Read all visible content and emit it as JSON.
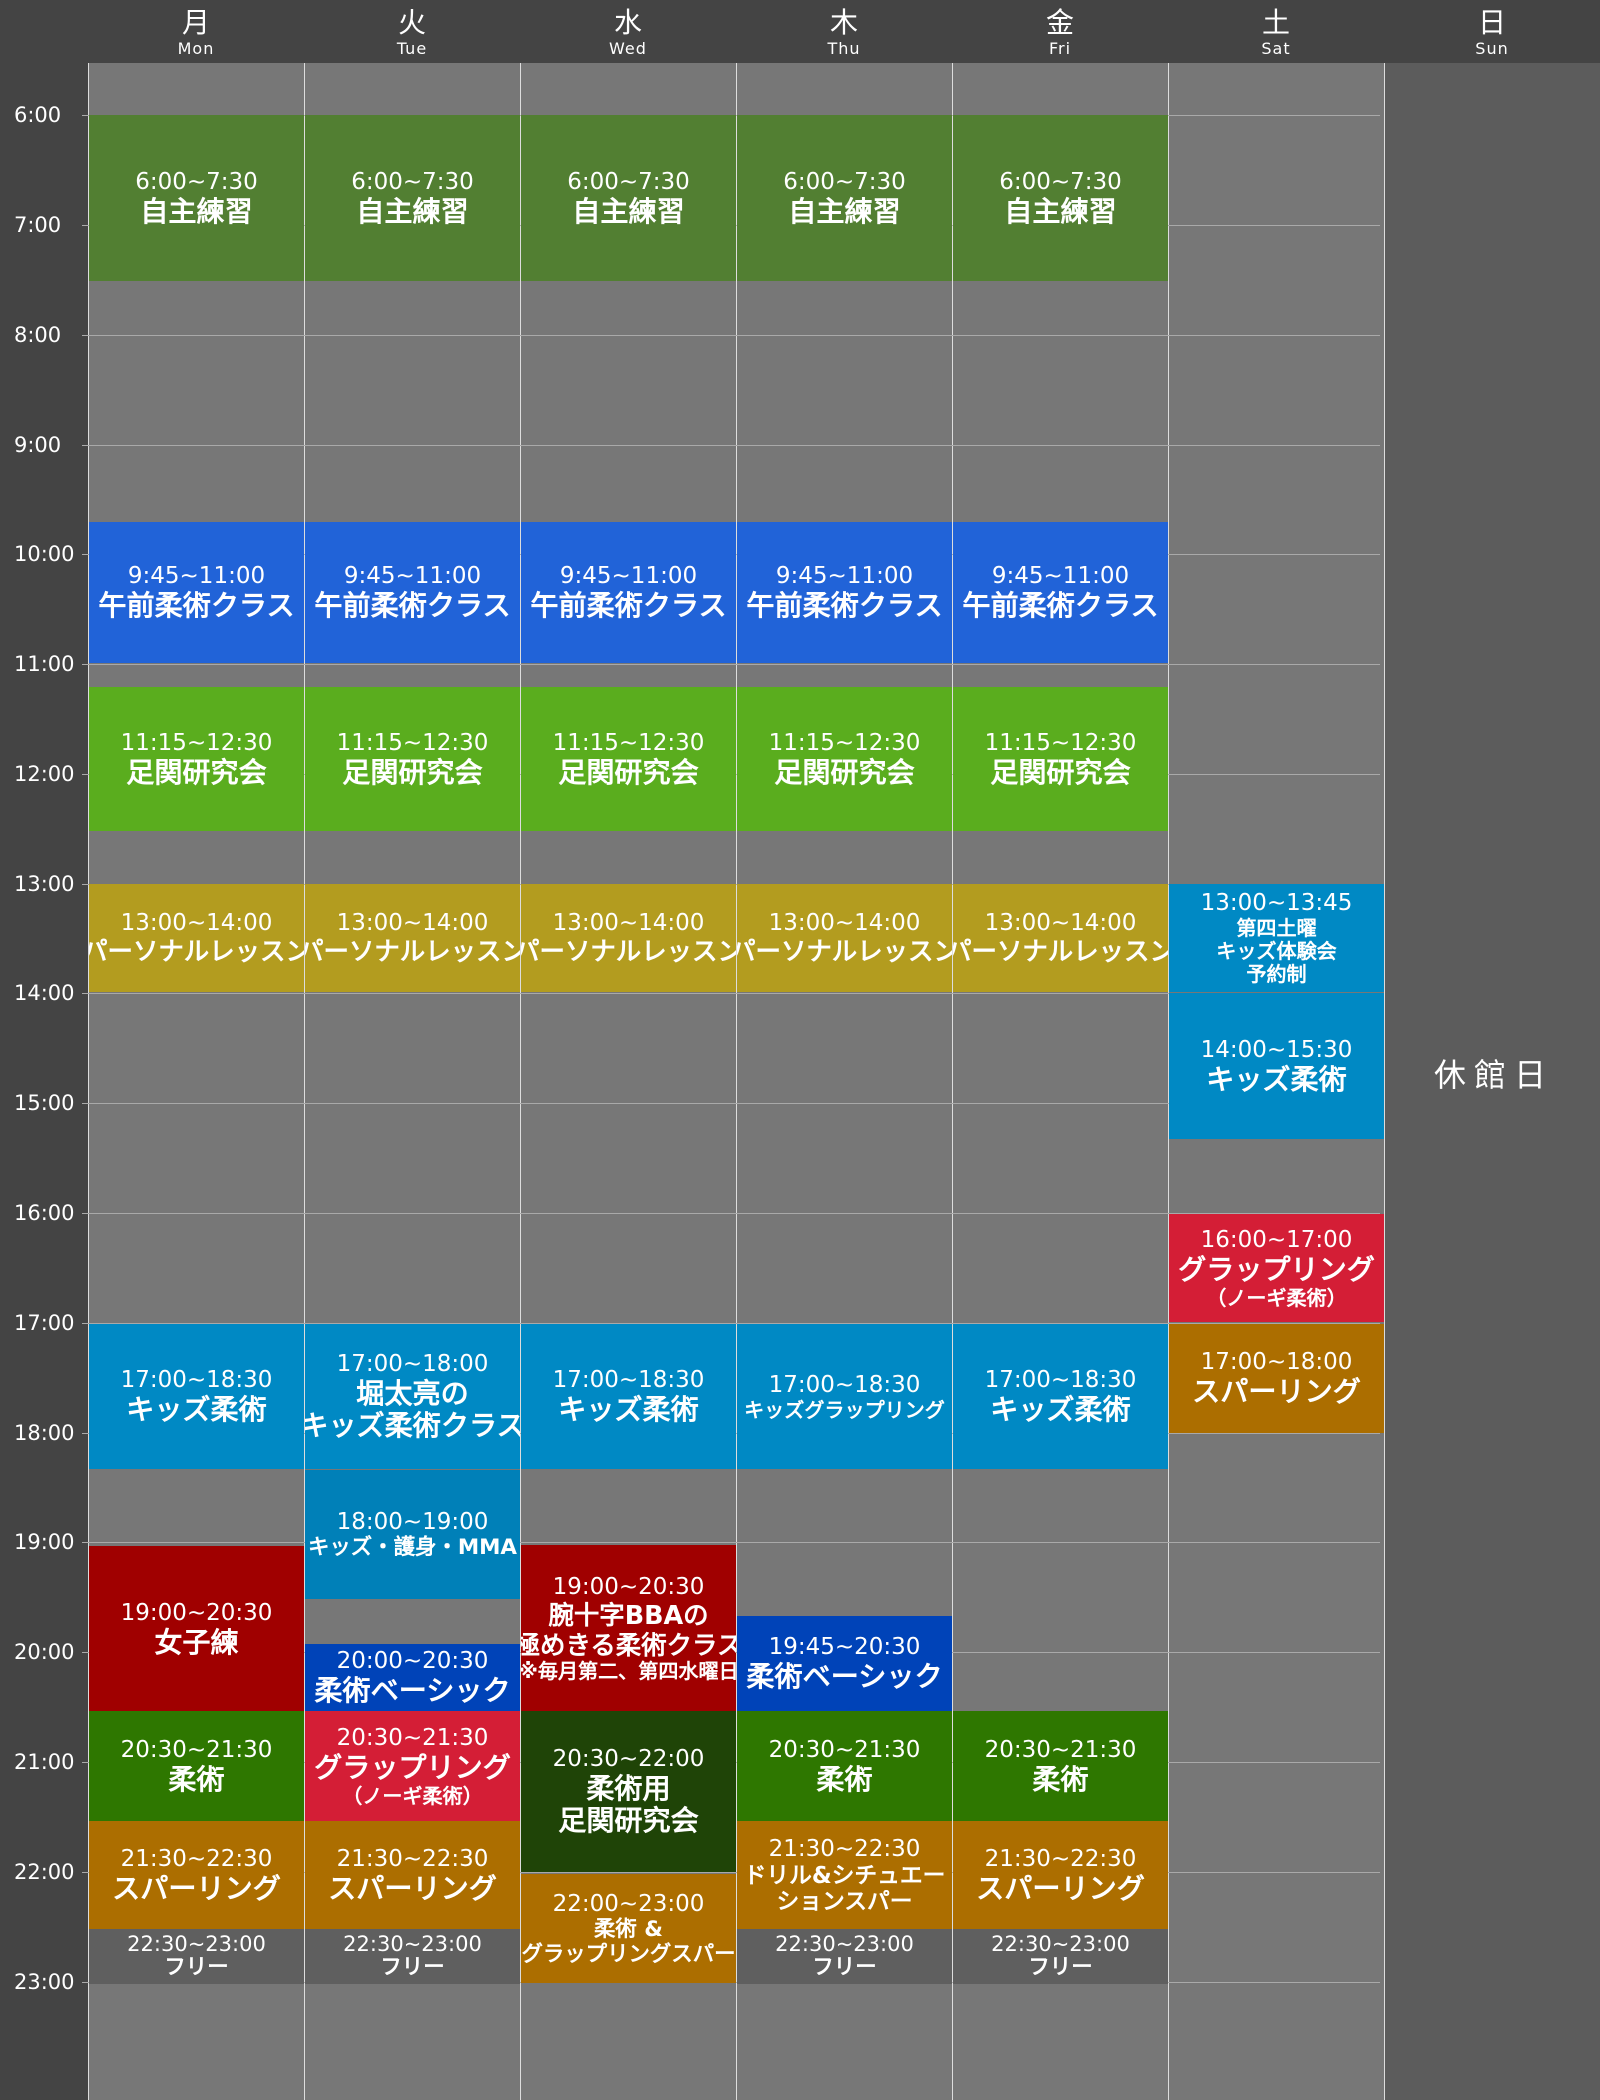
{
  "days": [
    {
      "jp": "月",
      "en": "Mon"
    },
    {
      "jp": "火",
      "en": "Tue"
    },
    {
      "jp": "水",
      "en": "Wed"
    },
    {
      "jp": "木",
      "en": "Thu"
    },
    {
      "jp": "金",
      "en": "Fri"
    },
    {
      "jp": "土",
      "en": "Sat"
    },
    {
      "jp": "日",
      "en": "Sun"
    }
  ],
  "hours": [
    "6:00",
    "7:00",
    "8:00",
    "9:00",
    "10:00",
    "11:00",
    "12:00",
    "13:00",
    "14:00",
    "15:00",
    "16:00",
    "17:00",
    "18:00",
    "19:00",
    "20:00",
    "21:00",
    "22:00",
    "23:00"
  ],
  "closed_label": "休館日",
  "colors": {
    "self": "#527f32",
    "am": "#2163d8",
    "leg": "#5aad1e",
    "personal": "#b39c1f",
    "kids": "#0089c4",
    "kids2": "#0080b8",
    "women": "#a00000",
    "basic": "#0043b8",
    "jiu": "#2e7700",
    "grapple": "#d41e36",
    "spar": "#ac6e00",
    "free": "#5f5f5f",
    "legjiu": "#1f4407"
  },
  "events": [
    {
      "day": 0,
      "time": "6:00~7:30",
      "lines": [
        "自主練習"
      ],
      "color": "self"
    },
    {
      "day": 1,
      "time": "6:00~7:30",
      "lines": [
        "自主練習"
      ],
      "color": "self"
    },
    {
      "day": 2,
      "time": "6:00~7:30",
      "lines": [
        "自主練習"
      ],
      "color": "self"
    },
    {
      "day": 3,
      "time": "6:00~7:30",
      "lines": [
        "自主練習"
      ],
      "color": "self"
    },
    {
      "day": 4,
      "time": "6:00~7:30",
      "lines": [
        "自主練習"
      ],
      "color": "self"
    },
    {
      "day": 0,
      "time": "9:45~11:00",
      "lines": [
        "午前柔術クラス"
      ],
      "color": "am"
    },
    {
      "day": 1,
      "time": "9:45~11:00",
      "lines": [
        "午前柔術クラス"
      ],
      "color": "am"
    },
    {
      "day": 2,
      "time": "9:45~11:00",
      "lines": [
        "午前柔術クラス"
      ],
      "color": "am"
    },
    {
      "day": 3,
      "time": "9:45~11:00",
      "lines": [
        "午前柔術クラス"
      ],
      "color": "am"
    },
    {
      "day": 4,
      "time": "9:45~11:00",
      "lines": [
        "午前柔術クラス"
      ],
      "color": "am"
    },
    {
      "day": 0,
      "time": "11:15~12:30",
      "lines": [
        "足関研究会"
      ],
      "color": "leg"
    },
    {
      "day": 1,
      "time": "11:15~12:30",
      "lines": [
        "足関研究会"
      ],
      "color": "leg"
    },
    {
      "day": 2,
      "time": "11:15~12:30",
      "lines": [
        "足関研究会"
      ],
      "color": "leg"
    },
    {
      "day": 3,
      "time": "11:15~12:30",
      "lines": [
        "足関研究会"
      ],
      "color": "leg"
    },
    {
      "day": 4,
      "time": "11:15~12:30",
      "lines": [
        "足関研究会"
      ],
      "color": "leg"
    },
    {
      "day": 0,
      "time": "13:00~14:00",
      "lines": [
        "パーソナルレッスン"
      ],
      "color": "personal"
    },
    {
      "day": 1,
      "time": "13:00~14:00",
      "lines": [
        "パーソナルレッスン"
      ],
      "color": "personal"
    },
    {
      "day": 2,
      "time": "13:00~14:00",
      "lines": [
        "パーソナルレッスン"
      ],
      "color": "personal"
    },
    {
      "day": 3,
      "time": "13:00~14:00",
      "lines": [
        "パーソナルレッスン"
      ],
      "color": "personal"
    },
    {
      "day": 4,
      "time": "13:00~14:00",
      "lines": [
        "パーソナルレッスン"
      ],
      "color": "personal"
    },
    {
      "day": 5,
      "time": "13:00~13:45",
      "lines": [
        "第四土曜",
        "キッズ体験会",
        "予約制"
      ],
      "color": "kids"
    },
    {
      "day": 5,
      "time": "14:00~15:30",
      "lines": [
        "キッズ柔術"
      ],
      "color": "kids"
    },
    {
      "day": 5,
      "time": "16:00~17:00",
      "lines": [
        "グラップリング",
        "（ノーギ柔術）"
      ],
      "color": "grapple"
    },
    {
      "day": 5,
      "time": "17:00~18:00",
      "lines": [
        "スパーリング"
      ],
      "color": "spar"
    },
    {
      "day": 0,
      "time": "17:00~18:30",
      "lines": [
        "キッズ柔術"
      ],
      "color": "kids"
    },
    {
      "day": 1,
      "time": "17:00~18:00",
      "lines": [
        "堀太亮の",
        "キッズ柔術クラス"
      ],
      "color": "kids"
    },
    {
      "day": 2,
      "time": "17:00~18:30",
      "lines": [
        "キッズ柔術"
      ],
      "color": "kids"
    },
    {
      "day": 3,
      "time": "17:00~18:30",
      "lines": [
        "キッズグラップリング"
      ],
      "color": "kids"
    },
    {
      "day": 4,
      "time": "17:00~18:30",
      "lines": [
        "キッズ柔術"
      ],
      "color": "kids"
    },
    {
      "day": 1,
      "time": "18:00~19:00",
      "lines": [
        "キッズ・護身・MMA"
      ],
      "color": "kids2"
    },
    {
      "day": 0,
      "time": "19:00~20:30",
      "lines": [
        "女子練"
      ],
      "color": "women"
    },
    {
      "day": 2,
      "time": "19:00~20:30",
      "lines": [
        "腕十字BBAの",
        "極めきる柔術クラス",
        "※毎月第二、第四水曜日"
      ],
      "color": "women"
    },
    {
      "day": 1,
      "time": "20:00~20:30",
      "lines": [
        "柔術ベーシック"
      ],
      "color": "basic"
    },
    {
      "day": 3,
      "time": "19:45~20:30",
      "lines": [
        "柔術ベーシック"
      ],
      "color": "basic"
    },
    {
      "day": 0,
      "time": "20:30~21:30",
      "lines": [
        "柔術"
      ],
      "color": "jiu"
    },
    {
      "day": 1,
      "time": "20:30~21:30",
      "lines": [
        "グラップリング",
        "（ノーギ柔術）"
      ],
      "color": "grapple"
    },
    {
      "day": 2,
      "time": "20:30~22:00",
      "lines": [
        "柔術用",
        "足関研究会"
      ],
      "color": "legjiu"
    },
    {
      "day": 3,
      "time": "20:30~21:30",
      "lines": [
        "柔術"
      ],
      "color": "jiu"
    },
    {
      "day": 4,
      "time": "20:30~21:30",
      "lines": [
        "柔術"
      ],
      "color": "jiu"
    },
    {
      "day": 0,
      "time": "21:30~22:30",
      "lines": [
        "スパーリング"
      ],
      "color": "spar"
    },
    {
      "day": 1,
      "time": "21:30~22:30",
      "lines": [
        "スパーリング"
      ],
      "color": "spar"
    },
    {
      "day": 2,
      "time": "22:00~23:00",
      "lines": [
        "柔術 &",
        "グラップリングスパー"
      ],
      "color": "spar"
    },
    {
      "day": 3,
      "time": "21:30~22:30",
      "lines": [
        "ドリル&シチュエー",
        "ションスパー"
      ],
      "color": "spar"
    },
    {
      "day": 4,
      "time": "21:30~22:30",
      "lines": [
        "スパーリング"
      ],
      "color": "spar"
    },
    {
      "day": 0,
      "time": "22:30~23:00",
      "lines": [
        "フリー"
      ],
      "color": "free"
    },
    {
      "day": 1,
      "time": "22:30~23:00",
      "lines": [
        "フリー"
      ],
      "color": "free"
    },
    {
      "day": 3,
      "time": "22:30~23:00",
      "lines": [
        "フリー"
      ],
      "color": "free"
    },
    {
      "day": 4,
      "time": "22:30~23:00",
      "lines": [
        "フリー"
      ],
      "color": "free"
    }
  ]
}
